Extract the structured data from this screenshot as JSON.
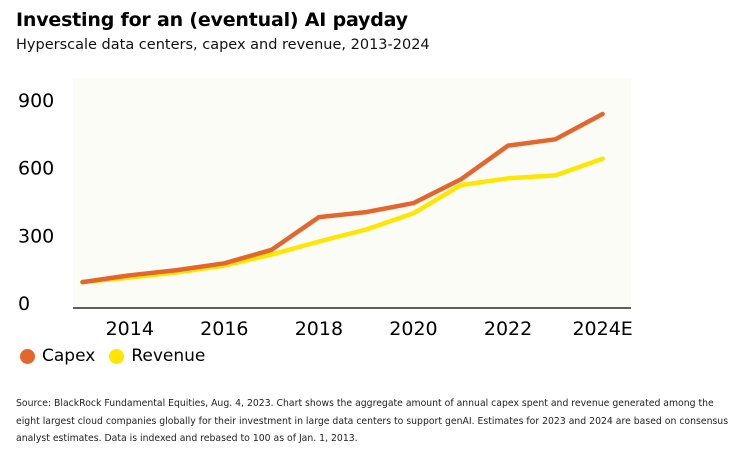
{
  "title": "Investing for an (eventual) AI payday",
  "subtitle": "Hyperscale data centers, capex and revenue, 2013-2024",
  "source": "Source: BlackRock Fundamental Equities, Aug. 4, 2023. Chart shows the aggregate amount of annual capex spent and revenue generated among the eight largest cloud companies globally for their investment in large data centers to support genAI. Estimates for 2023 and 2024 are based on consensus analyst estimates. Data is indexed and rebased to 100 as of Jan. 1, 2013.",
  "colors": {
    "capex": "#e3672d",
    "revenue": "#ffe600",
    "plot_bg": "#fcfcf7",
    "axis": "#000000"
  },
  "chart_data": {
    "type": "line",
    "x": [
      2013,
      2014,
      2015,
      2016,
      2017,
      2018,
      2019,
      2020,
      2021,
      2022,
      2023,
      2024
    ],
    "x_tick_values": [
      2014,
      2016,
      2018,
      2020,
      2022,
      2024
    ],
    "x_tick_labels": [
      "2014",
      "2016",
      "2018",
      "2020",
      "2022",
      "2024E"
    ],
    "y_ticks": [
      0,
      300,
      600,
      900
    ],
    "ylim": [
      0,
      900
    ],
    "xlim": [
      2012.8,
      2024.6
    ],
    "grid": false,
    "legend_position": "bottom-left",
    "series": [
      {
        "name": "Capex",
        "color": "#e3672d",
        "values": [
          115,
          145,
          168,
          198,
          258,
          403,
          425,
          465,
          570,
          720,
          748,
          860
        ]
      },
      {
        "name": "Revenue",
        "color": "#ffe600",
        "values": [
          115,
          135,
          158,
          188,
          237,
          295,
          348,
          420,
          545,
          575,
          588,
          662
        ]
      }
    ]
  }
}
